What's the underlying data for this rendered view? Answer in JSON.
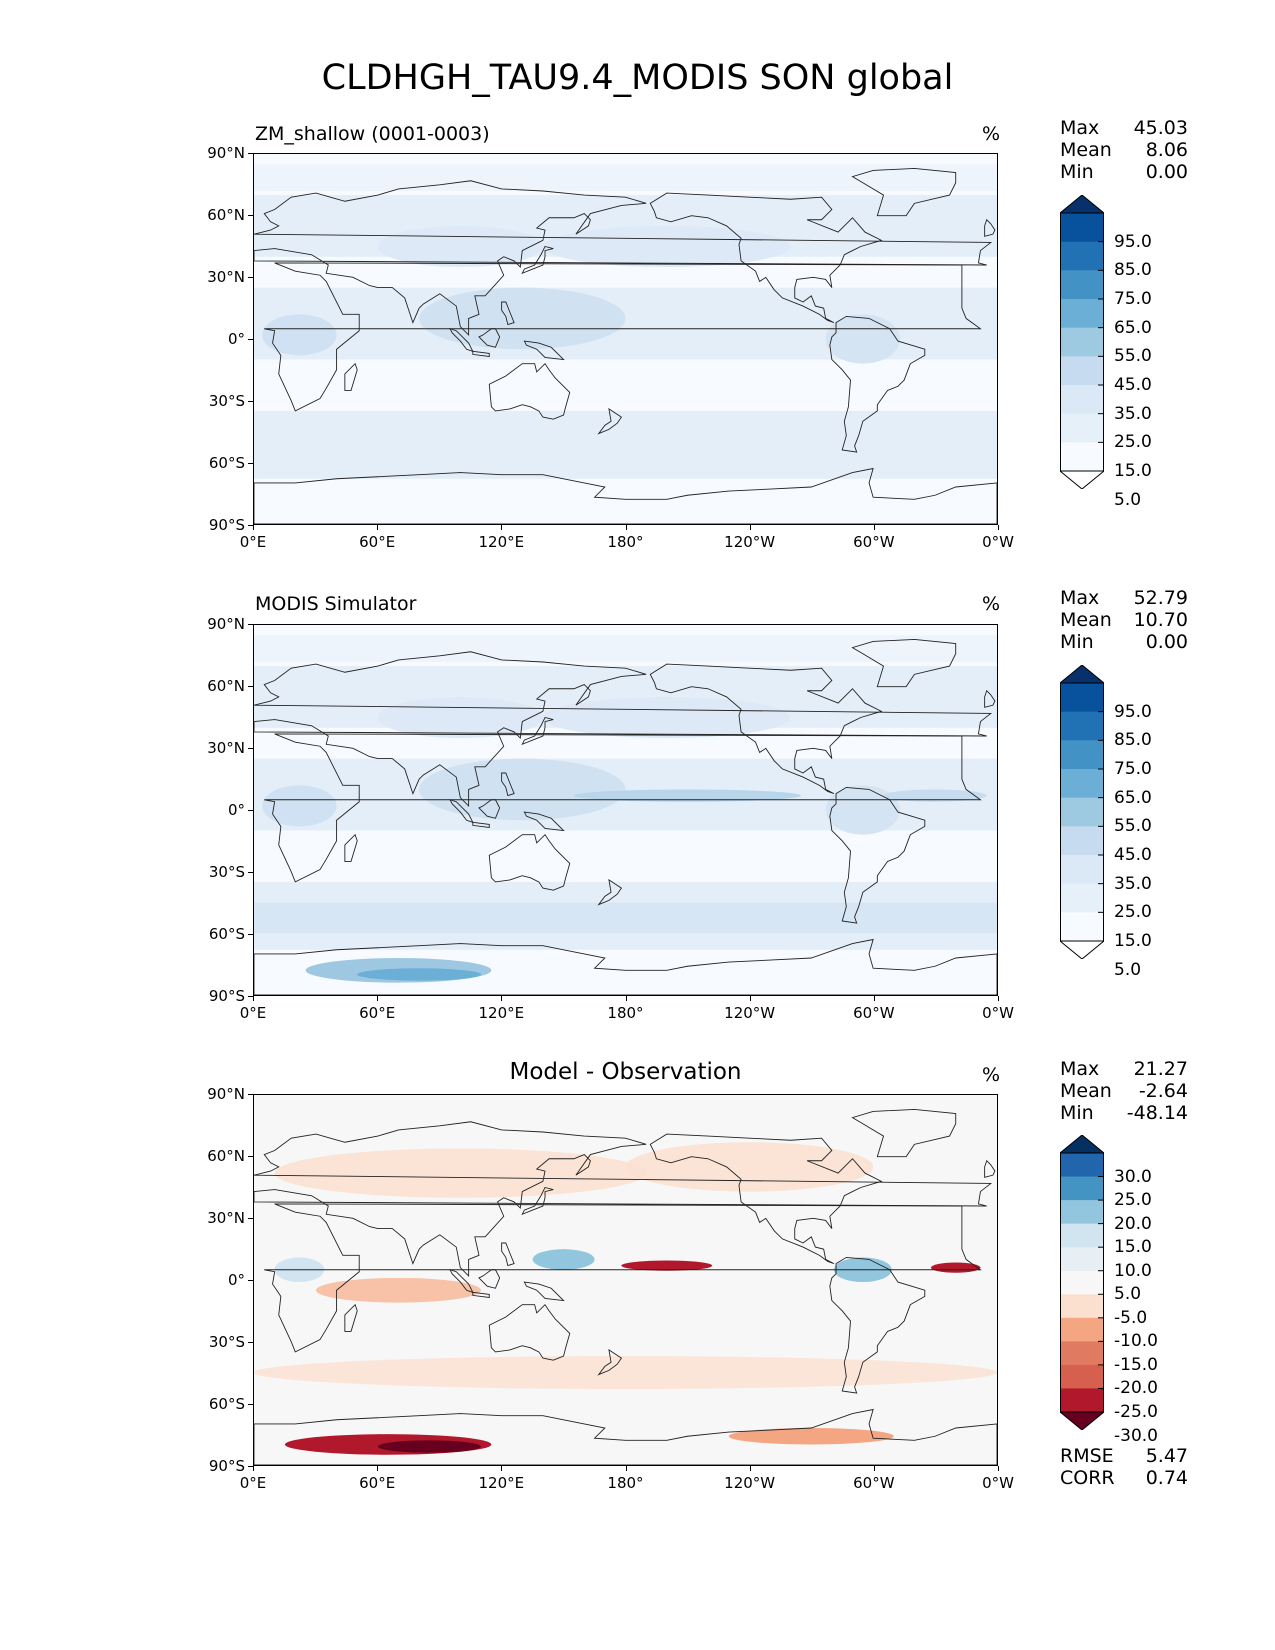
{
  "title": "CLDHGH_TAU9.4_MODIS SON global",
  "lat_ticks": [
    "90°N",
    "60°N",
    "30°N",
    "0°",
    "30°S",
    "60°S",
    "90°S"
  ],
  "lon_ticks": [
    "0°E",
    "60°E",
    "120°E",
    "180°",
    "120°W",
    "60°W",
    "0°W"
  ],
  "panels": [
    {
      "title": "ZM_shallow (0001-0003)",
      "units": "%",
      "stats": [
        {
          "label": "Max",
          "value": "45.03"
        },
        {
          "label": "Mean",
          "value": "8.06"
        },
        {
          "label": "Min",
          "value": "0.00"
        }
      ],
      "colorbar": {
        "labels": [
          "95.0",
          "85.0",
          "75.0",
          "65.0",
          "55.0",
          "45.0",
          "35.0",
          "25.0",
          "15.0",
          "5.0"
        ],
        "colors": [
          "#08306b",
          "#08519c",
          "#2171b5",
          "#4292c6",
          "#6baed6",
          "#9ecae1",
          "#c6dbef",
          "#dbe9f6",
          "#e6f0f9",
          "#f7fbff",
          "#ffffff"
        ]
      },
      "field": "mod"
    },
    {
      "title": "MODIS Simulator",
      "units": "%",
      "stats": [
        {
          "label": "Max",
          "value": "52.79"
        },
        {
          "label": "Mean",
          "value": "10.70"
        },
        {
          "label": "Min",
          "value": "0.00"
        }
      ],
      "colorbar": {
        "labels": [
          "95.0",
          "85.0",
          "75.0",
          "65.0",
          "55.0",
          "45.0",
          "35.0",
          "25.0",
          "15.0",
          "5.0"
        ],
        "colors": [
          "#08306b",
          "#08519c",
          "#2171b5",
          "#4292c6",
          "#6baed6",
          "#9ecae1",
          "#c6dbef",
          "#dbe9f6",
          "#e6f0f9",
          "#f7fbff",
          "#ffffff"
        ]
      },
      "field": "obs"
    },
    {
      "title": "Model - Observation",
      "units": "%",
      "stats": [
        {
          "label": "Max",
          "value": "21.27"
        },
        {
          "label": "Mean",
          "value": "-2.64"
        },
        {
          "label": "Min",
          "value": "-48.14"
        }
      ],
      "colorbar": {
        "labels": [
          "30.0",
          "25.0",
          "20.0",
          "15.0",
          "10.0",
          "5.0",
          "-5.0",
          "-10.0",
          "-15.0",
          "-20.0",
          "-25.0",
          "-30.0"
        ],
        "colors": [
          "#053061",
          "#2166ac",
          "#4393c3",
          "#92c5de",
          "#d1e5f0",
          "#e7eef4",
          "#f7f7f7",
          "#fbe0d0",
          "#f4a582",
          "#e07b62",
          "#d6604d",
          "#b2182b",
          "#67001f"
        ]
      },
      "field": "diff",
      "extra_stats": [
        {
          "label": "RMSE",
          "value": "5.47"
        },
        {
          "label": "CORR",
          "value": "0.74"
        }
      ]
    }
  ]
}
